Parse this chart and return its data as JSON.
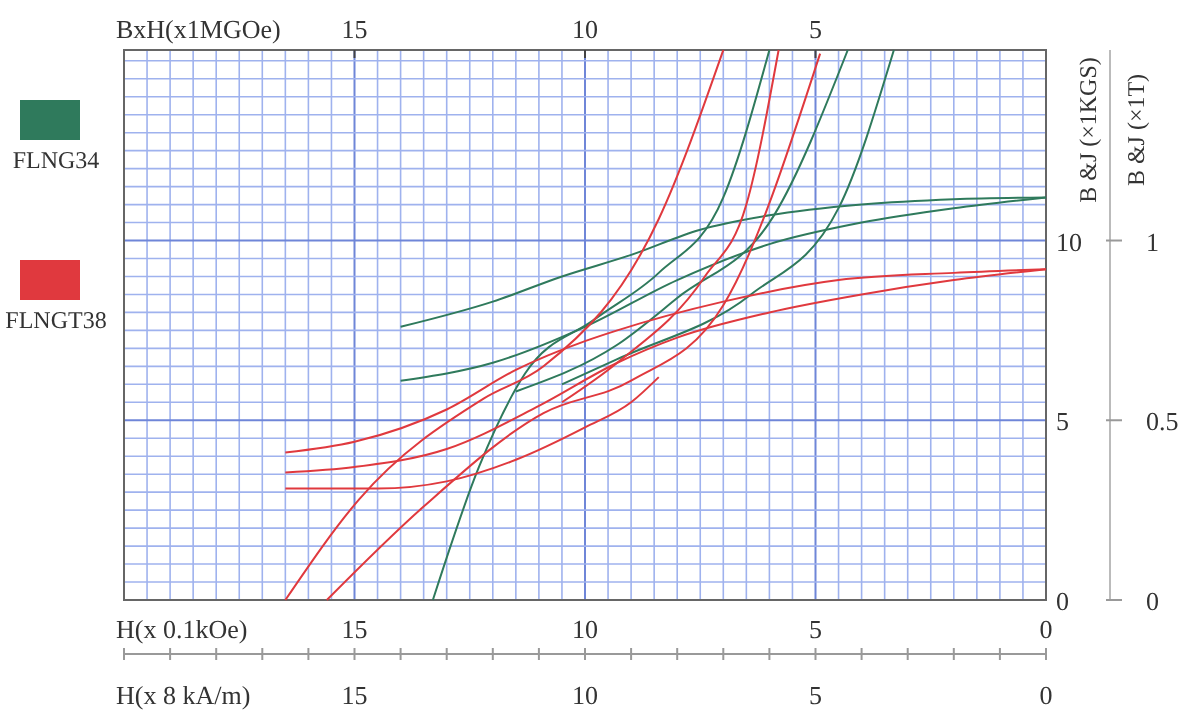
{
  "chart_data": {
    "type": "line",
    "xlabel": "H(x 0.1kOe)",
    "x2label": "BxH(x1MGOe)",
    "annotations": [
      "H(x 8 kA/m)",
      {
        "text": "15",
        "x": 15
      },
      {
        "text": "10",
        "x": 10
      },
      {
        "text": "5",
        "x": 5
      },
      {
        "text": "0",
        "x": 0
      }
    ],
    "ylabel": "B &J (×1KGS)",
    "y2label": "B &J (×1T)",
    "xlim": [
      20,
      0
    ],
    "x2lim": [
      20,
      0
    ],
    "ylim": [
      0,
      15.3
    ],
    "y2lim": [
      0,
      1.53
    ],
    "xticks": [
      0,
      {
        "value": 0.5,
        "label": null
      },
      {
        "value": 1,
        "label": null
      },
      {
        "value": 1.5,
        "label": null
      },
      {
        "value": 2,
        "label": null
      },
      {
        "value": 2.5,
        "label": null
      },
      {
        "value": 3,
        "label": null
      },
      {
        "value": 3.5,
        "label": null
      },
      {
        "value": 4,
        "label": null
      },
      {
        "value": 4.5,
        "label": null
      },
      5,
      {
        "value": 5.5,
        "label": null
      },
      {
        "value": 6,
        "label": null
      },
      {
        "value": 6.5,
        "label": null
      },
      {
        "value": 7,
        "label": null
      },
      {
        "value": 7.5,
        "label": null
      },
      {
        "value": 8,
        "label": null
      },
      {
        "value": 8.5,
        "label": null
      },
      {
        "value": 9,
        "label": null
      },
      {
        "value": 9.5,
        "label": null
      },
      10,
      {
        "value": 10.5,
        "label": null
      },
      {
        "value": 11,
        "label": null
      },
      {
        "value": 11.5,
        "label": null
      },
      {
        "value": 12,
        "label": null
      },
      {
        "value": 12.5,
        "label": null
      },
      {
        "value": 13,
        "label": null
      },
      {
        "value": 13.5,
        "label": null
      },
      {
        "value": 14,
        "label": null
      },
      {
        "value": 14.5,
        "label": null
      },
      15,
      {
        "value": 15.5,
        "label": null
      },
      {
        "value": 16,
        "label": null
      },
      {
        "value": 16.5,
        "label": null
      },
      {
        "value": 17,
        "label": null
      },
      {
        "value": 17.5,
        "label": null
      },
      {
        "value": 18,
        "label": null
      },
      {
        "value": 18.5,
        "label": null
      },
      {
        "value": 19,
        "label": null
      },
      {
        "value": 19.5,
        "label": null
      },
      {
        "value": 20,
        "label": null
      }
    ],
    "x2ticks": [
      5,
      10,
      15
    ],
    "yticks": [
      0,
      {
        "value": 0.5,
        "label": null
      },
      {
        "value": 1,
        "label": null
      },
      {
        "value": 1.5,
        "label": null
      },
      {
        "value": 2,
        "label": null
      },
      {
        "value": 2.5,
        "label": null
      },
      {
        "value": 3,
        "label": null
      },
      {
        "value": 3.5,
        "label": null
      },
      {
        "value": 4,
        "label": null
      },
      {
        "value": 4.5,
        "label": null
      },
      5,
      {
        "value": 5.5,
        "label": null
      },
      {
        "value": 6,
        "label": null
      },
      {
        "value": 6.5,
        "label": null
      },
      {
        "value": 7,
        "label": null
      },
      {
        "value": 7.5,
        "label": null
      },
      {
        "value": 8,
        "label": null
      },
      {
        "value": 8.5,
        "label": null
      },
      {
        "value": 9,
        "label": null
      },
      {
        "value": 9.5,
        "label": null
      },
      10,
      {
        "value": 10.5,
        "label": null
      },
      {
        "value": 11,
        "label": null
      },
      {
        "value": 11.5,
        "label": null
      },
      {
        "value": 12,
        "label": null
      },
      {
        "value": 12.5,
        "label": null
      },
      {
        "value": 13,
        "label": null
      },
      {
        "value": 13.5,
        "label": null
      },
      {
        "value": 14,
        "label": null
      },
      {
        "value": 14.5,
        "label": null
      },
      {
        "value": 15,
        "label": null
      }
    ],
    "y2ticks": [
      0,
      0.5,
      1
    ],
    "grid": true,
    "legend": "left",
    "marker": "none",
    "line_style": "solid",
    "series": [
      {
        "name": "FLNG34",
        "color": "#2f7a5c",
        "x": [
          0,
          2,
          4,
          6,
          7.5,
          9,
          10.5,
          12,
          14
        ],
        "values": [
          11.2,
          11.15,
          11.0,
          10.7,
          10.3,
          9.6,
          9.0,
          8.3,
          7.6
        ]
      },
      {
        "color": "#2f7a5c",
        "x": [
          0,
          2,
          4,
          6,
          8,
          10,
          12,
          14
        ],
        "values": [
          11.2,
          10.9,
          10.5,
          9.9,
          8.9,
          7.6,
          6.6,
          6.1
        ]
      },
      {
        "color": "#2f7a5c",
        "x": [
          13.3,
          12.3,
          11.3,
          9.8,
          8.4,
          7,
          6
        ],
        "values": [
          0,
          3.7,
          6.3,
          7.8,
          9.1,
          11.2,
          15.3
        ]
      },
      {
        "color": "#2f7a5c",
        "x": [
          11.5,
          9.3,
          8,
          5.9,
          4.3
        ],
        "values": [
          5.8,
          7.1,
          8.4,
          10.7,
          15.3
        ]
      },
      {
        "color": "#2f7a5c",
        "x": [
          10.5,
          9.3,
          6.4,
          4.5,
          3.3
        ],
        "values": [
          6.0,
          6.7,
          8.5,
          10.9,
          15.3
        ]
      },
      {
        "name": "FLNGT38",
        "color": "#e0393e",
        "x": [
          16.5,
          15,
          13,
          11.5,
          10,
          9.3,
          7,
          4.5,
          2,
          0
        ],
        "values": [
          4.1,
          4.4,
          5.3,
          6.4,
          7.2,
          7.5,
          8.3,
          8.9,
          9.1,
          9.2
        ]
      },
      {
        "color": "#e0393e",
        "x": [
          16.5,
          15,
          13,
          11,
          9.3,
          8,
          6,
          4,
          2,
          0
        ],
        "values": [
          3.55,
          3.7,
          4.2,
          5.4,
          6.6,
          7.3,
          8.0,
          8.5,
          8.9,
          9.2
        ]
      },
      {
        "color": "#e0393e",
        "x": [
          16.5,
          14.5,
          13,
          11.5,
          10,
          9,
          8.4
        ],
        "values": [
          3.1,
          3.1,
          3.3,
          3.9,
          4.8,
          5.5,
          6.2
        ]
      },
      {
        "color": "#e0393e",
        "x": [
          16.5,
          14.9,
          12.2,
          10.9,
          8.4,
          7.0
        ],
        "values": [
          0,
          2.8,
          5.6,
          6.5,
          10.6,
          15.3
        ]
      },
      {
        "color": "#e0393e",
        "x": [
          15.6,
          13.5,
          10.9,
          9.0,
          7.0,
          4.9
        ],
        "values": [
          0,
          2.6,
          5.2,
          6.1,
          8.2,
          15.2
        ]
      },
      {
        "color": "#e0393e",
        "x": [
          10.5,
          9.3,
          7.4,
          6.5,
          5.8
        ],
        "values": [
          5.5,
          6.6,
          9.0,
          11,
          15.3
        ]
      }
    ]
  }
}
